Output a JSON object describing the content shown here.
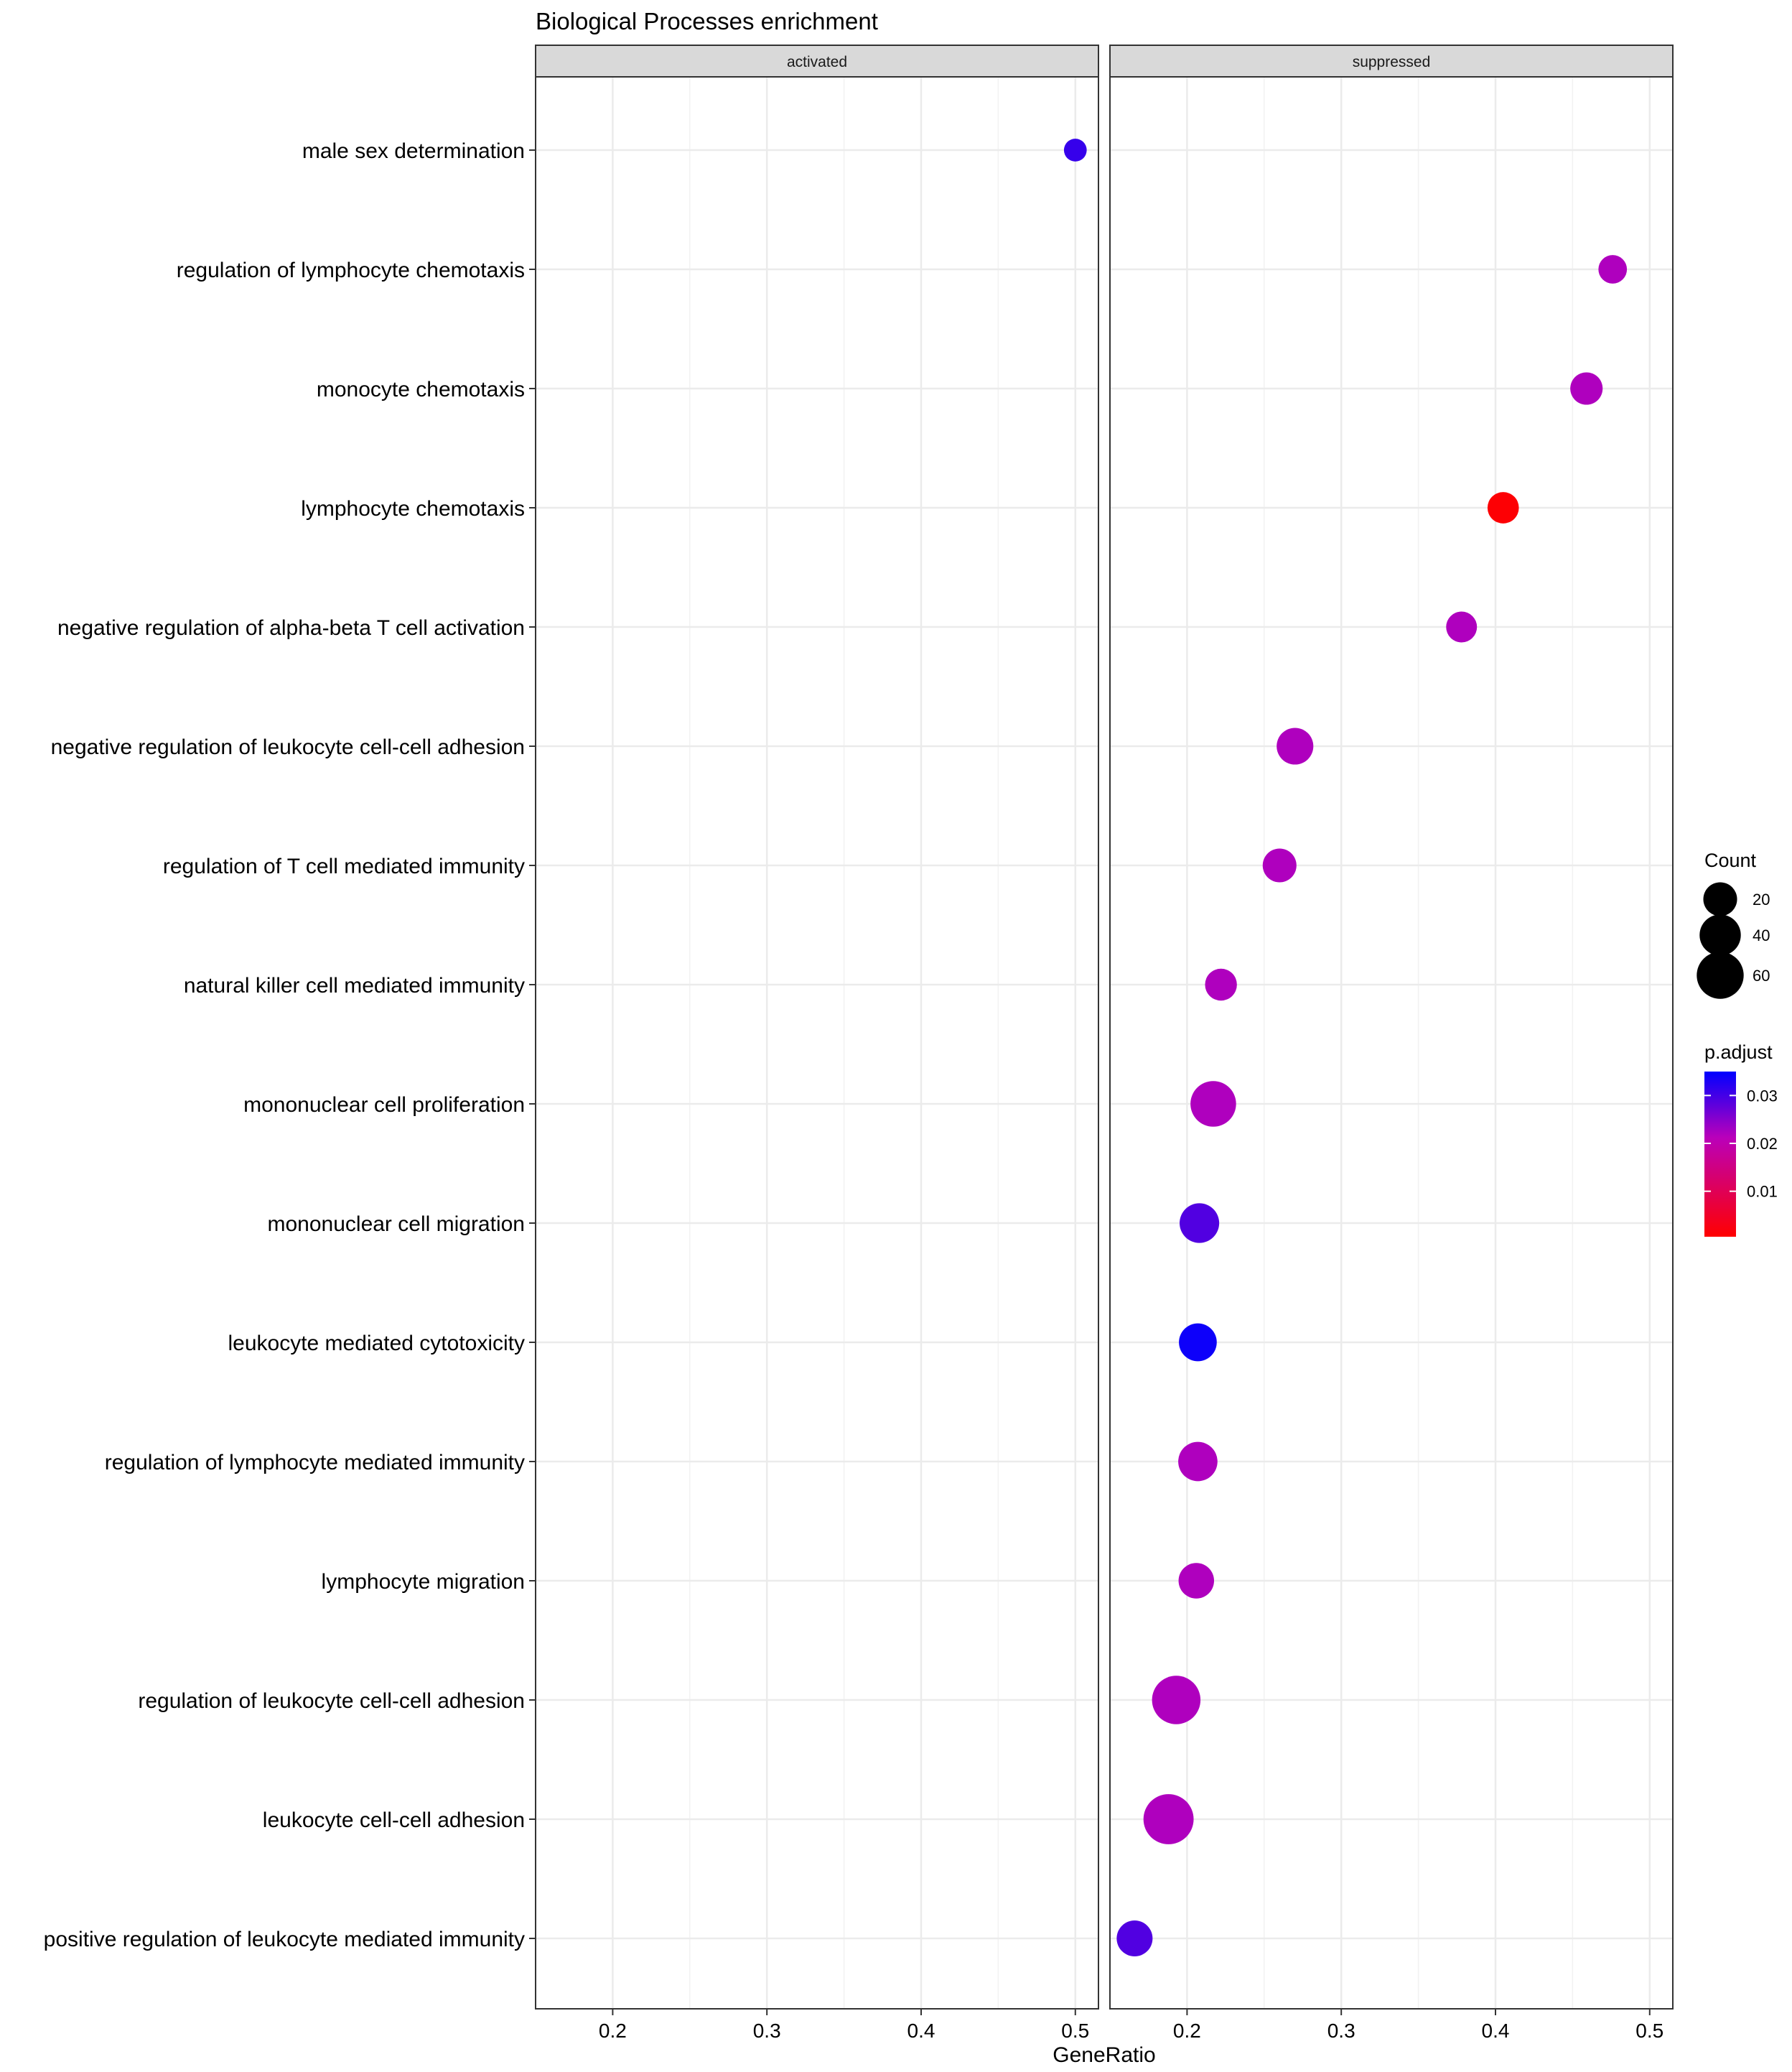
{
  "chart_data": {
    "type": "scatter",
    "title": "Biological Processes enrichment",
    "xlabel": "GeneRatio",
    "ylabel": "",
    "xlim": [
      0.15,
      0.515
    ],
    "xticks": [
      0.2,
      0.3,
      0.4,
      0.5
    ],
    "xtick_labels": [
      "0.2",
      "0.3",
      "0.4",
      "0.5"
    ],
    "grid": true,
    "facets": [
      "activated",
      "suppressed"
    ],
    "categories": [
      "male sex determination",
      "regulation of lymphocyte chemotaxis",
      "monocyte chemotaxis",
      "lymphocyte chemotaxis",
      "negative regulation of alpha-beta T cell activation",
      "negative regulation of leukocyte cell-cell adhesion",
      "regulation of T cell mediated immunity",
      "natural killer cell mediated immunity",
      "mononuclear cell proliferation",
      "mononuclear cell migration",
      "leukocyte mediated cytotoxicity",
      "regulation of lymphocyte mediated immunity",
      "lymphocyte migration",
      "regulation of leukocyte cell-cell adhesion",
      "leukocyte cell-cell adhesion",
      "positive regulation of leukocyte mediated immunity"
    ],
    "points": [
      {
        "facet": "activated",
        "term": "male sex determination",
        "gene_ratio": 0.5,
        "count": 3,
        "p_adjust": 0.031
      },
      {
        "facet": "suppressed",
        "term": "regulation of lymphocyte chemotaxis",
        "gene_ratio": 0.476,
        "count": 10,
        "p_adjust": 0.022
      },
      {
        "facet": "suppressed",
        "term": "monocyte chemotaxis",
        "gene_ratio": 0.459,
        "count": 17,
        "p_adjust": 0.022
      },
      {
        "facet": "suppressed",
        "term": "lymphocyte chemotaxis",
        "gene_ratio": 0.405,
        "count": 15,
        "p_adjust": 0.001
      },
      {
        "facet": "suppressed",
        "term": "negative regulation of alpha-beta T cell activation",
        "gene_ratio": 0.378,
        "count": 14,
        "p_adjust": 0.022
      },
      {
        "facet": "suppressed",
        "term": "negative regulation of leukocyte cell-cell adhesion",
        "gene_ratio": 0.27,
        "count": 27,
        "p_adjust": 0.022
      },
      {
        "facet": "suppressed",
        "term": "regulation of T cell mediated immunity",
        "gene_ratio": 0.26,
        "count": 20,
        "p_adjust": 0.022
      },
      {
        "facet": "suppressed",
        "term": "natural killer cell mediated immunity",
        "gene_ratio": 0.222,
        "count": 16,
        "p_adjust": 0.022
      },
      {
        "facet": "suppressed",
        "term": "mononuclear cell proliferation",
        "gene_ratio": 0.217,
        "count": 55,
        "p_adjust": 0.022
      },
      {
        "facet": "suppressed",
        "term": "mononuclear cell migration",
        "gene_ratio": 0.208,
        "count": 35,
        "p_adjust": 0.029
      },
      {
        "facet": "suppressed",
        "term": "leukocyte mediated cytotoxicity",
        "gene_ratio": 0.207,
        "count": 30,
        "p_adjust": 0.034
      },
      {
        "facet": "suppressed",
        "term": "regulation of lymphocyte mediated immunity",
        "gene_ratio": 0.207,
        "count": 34,
        "p_adjust": 0.022
      },
      {
        "facet": "suppressed",
        "term": "lymphocyte migration",
        "gene_ratio": 0.206,
        "count": 24,
        "p_adjust": 0.022
      },
      {
        "facet": "suppressed",
        "term": "regulation of leukocyte cell-cell adhesion",
        "gene_ratio": 0.193,
        "count": 66,
        "p_adjust": 0.022
      },
      {
        "facet": "suppressed",
        "term": "leukocyte cell-cell adhesion",
        "gene_ratio": 0.188,
        "count": 73,
        "p_adjust": 0.022
      },
      {
        "facet": "suppressed",
        "term": "positive regulation of leukocyte mediated immunity",
        "gene_ratio": 0.166,
        "count": 25,
        "p_adjust": 0.029
      }
    ],
    "legend_size": {
      "title": "Count",
      "values": [
        20,
        40,
        60
      ],
      "labels": [
        "20",
        "40",
        "60"
      ]
    },
    "legend_color": {
      "title": "p.adjust",
      "ticks": [
        0.01,
        0.02,
        0.03
      ],
      "labels": [
        "0.01",
        "0.02",
        "0.03"
      ],
      "range": [
        0.0005,
        0.035
      ],
      "low_color": "#FF0000",
      "high_color": "#0000FF"
    },
    "colors": {
      "grid": "#EBEBEB",
      "strip": "#D9D9D9",
      "border": "#333333",
      "text": "#000000"
    }
  }
}
